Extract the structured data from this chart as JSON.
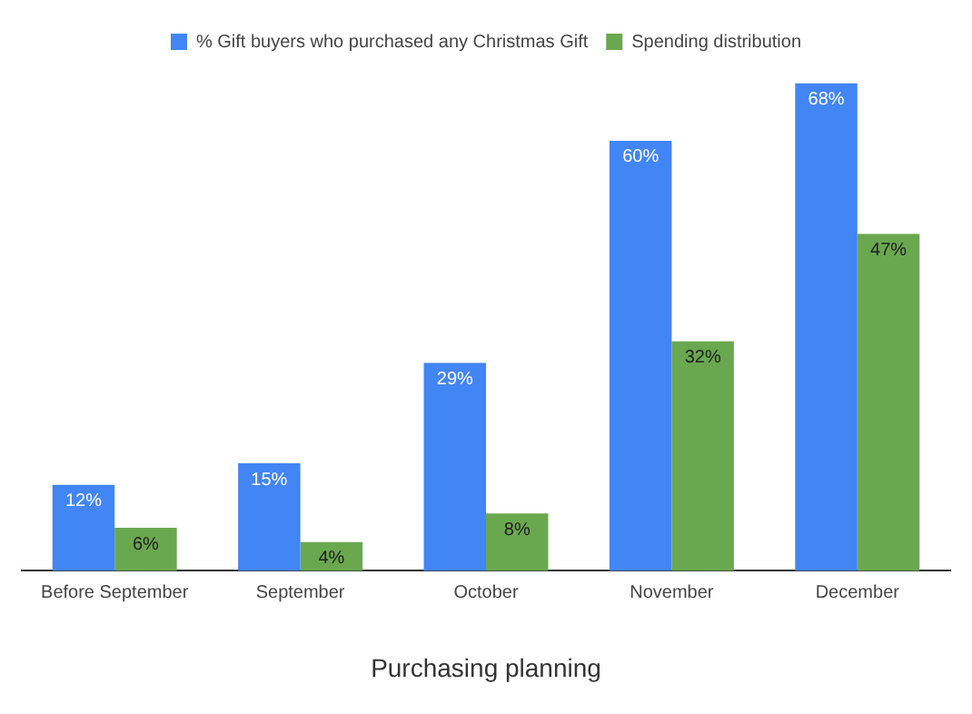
{
  "chart_data": {
    "type": "bar",
    "xlabel": "Purchasing planning",
    "categories": [
      "Before September",
      "September",
      "October",
      "November",
      "December"
    ],
    "series": [
      {
        "name": "% Gift buyers who purchased any Christmas Gift",
        "color": "#4285f4",
        "values": [
          12,
          15,
          29,
          60,
          68
        ],
        "value_labels": [
          "12%",
          "15%",
          "29%",
          "60%",
          "68%"
        ]
      },
      {
        "name": "Spending distribution",
        "color": "#6aa84f",
        "values": [
          6,
          4,
          8,
          32,
          47
        ],
        "value_labels": [
          "6%",
          "4%",
          "8%",
          "32%",
          "47%"
        ]
      }
    ],
    "legend": "top",
    "grid": false
  }
}
